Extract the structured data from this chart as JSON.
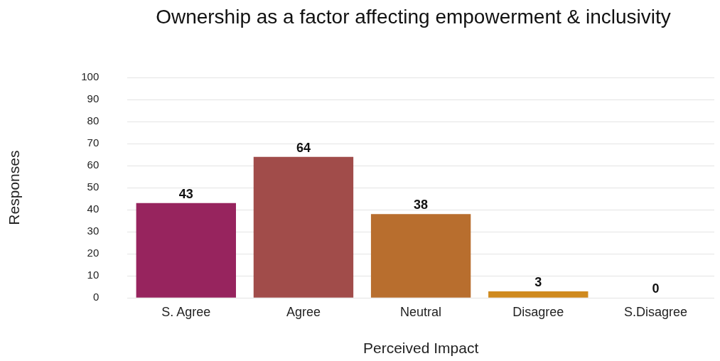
{
  "chart_data": {
    "type": "bar",
    "title": "Ownership as a factor affecting empowerment & inclusivity",
    "xlabel": "Perceived Impact",
    "ylabel": "Responses",
    "categories": [
      "S. Agree",
      "Agree",
      "Neutral",
      "Disagree",
      "S.Disagree"
    ],
    "values": [
      43,
      64,
      38,
      3,
      0
    ],
    "colors": [
      "#97245e",
      "#a14c4a",
      "#b86e2e",
      "#cf8a1f",
      "#d9a62a"
    ],
    "ylim": [
      0,
      100
    ],
    "yticks": [
      0,
      10,
      20,
      30,
      40,
      50,
      60,
      70,
      80,
      90,
      100
    ],
    "grid": "y",
    "data_labels": true
  }
}
